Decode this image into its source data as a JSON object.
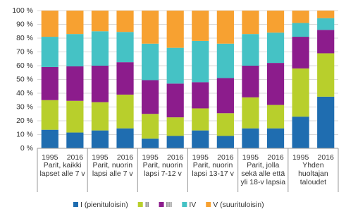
{
  "chart_data": {
    "type": "stacked-bar",
    "categories": [
      "1995",
      "2016",
      "1995",
      "2016",
      "1995",
      "2016",
      "1995",
      "2016",
      "1995",
      "2016",
      "1995",
      "2016"
    ],
    "groups": [
      [
        "Parit, kaikki",
        "lapset alle 7 v"
      ],
      [
        "Parit, nuorin",
        "lapsi alle 7 v"
      ],
      [
        "Parit, nuorin",
        "lapsi 7-12 v"
      ],
      [
        "Parit, nuorin",
        "lapsi 13-17 v"
      ],
      [
        "Parit, jolla",
        "sekä alle että",
        "yli 18-v lapsia"
      ],
      [
        "Yhden",
        "huoltajan",
        "taloudet"
      ]
    ],
    "series": [
      {
        "name": "I (pienituloisin)",
        "color": "#1f6db0",
        "values": [
          13.5,
          11.5,
          13,
          14.5,
          7,
          9,
          13,
          9,
          14.5,
          14.5,
          23,
          37.5
        ]
      },
      {
        "name": "II",
        "color": "#b8cf2c",
        "values": [
          21.5,
          23,
          20.5,
          24.5,
          18,
          13.5,
          16,
          16.5,
          22.5,
          17,
          35,
          31.5
        ]
      },
      {
        "name": "III",
        "color": "#8c1c8c",
        "values": [
          24,
          25,
          26.5,
          23.5,
          24.5,
          24.5,
          19,
          25.5,
          23,
          30.5,
          23,
          17
        ]
      },
      {
        "name": "IV",
        "color": "#45c2c5",
        "values": [
          22,
          23.5,
          25,
          22,
          26.5,
          26,
          30,
          25,
          23,
          22,
          10,
          8.5
        ]
      },
      {
        "name": "V (suurituloisin)",
        "color": "#f7a131",
        "values": [
          19,
          17,
          15,
          15.5,
          24,
          27,
          22,
          24,
          17,
          16,
          9,
          5.5
        ]
      }
    ],
    "ylim": [
      0,
      100
    ],
    "yticks": [
      {
        "value": 0,
        "label": "0 %"
      },
      {
        "value": 10,
        "label": "10 %"
      },
      {
        "value": 20,
        "label": "20 %"
      },
      {
        "value": 30,
        "label": "30 %"
      },
      {
        "value": 40,
        "label": "40 %"
      },
      {
        "value": 50,
        "label": "50 %"
      },
      {
        "value": 60,
        "label": "60 %"
      },
      {
        "value": 70,
        "label": "70 %"
      },
      {
        "value": 80,
        "label": "80 %"
      },
      {
        "value": 90,
        "label": "90 %"
      },
      {
        "value": 100,
        "label": "100 %"
      }
    ],
    "grid": true
  }
}
